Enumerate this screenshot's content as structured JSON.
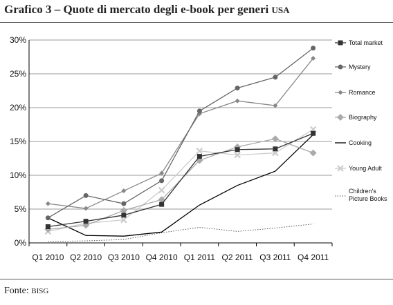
{
  "title": "Grafico 3 – Quote di mercato degli e-book per generi",
  "title_suffix": "USA",
  "source_label": "Fonte:",
  "source_value": "BISG",
  "chart_data": {
    "type": "line",
    "categories": [
      "Q1 2010",
      "Q2 2010",
      "Q3 2010",
      "Q4 2010",
      "Q1 2011",
      "Q2 2011",
      "Q3 2011",
      "Q4 2011"
    ],
    "ylim": [
      0,
      30
    ],
    "yticks": [
      0,
      5,
      10,
      15,
      20,
      25,
      30
    ],
    "yticklabels": [
      "0%",
      "5%",
      "10%",
      "15%",
      "20%",
      "25%",
      "30%"
    ],
    "grid": true,
    "legend_position": "right",
    "series": [
      {
        "name": "Total market",
        "color": "#333333",
        "marker": "square",
        "values": [
          2.4,
          3.2,
          4.1,
          5.7,
          12.8,
          13.8,
          13.9,
          16.2
        ]
      },
      {
        "name": "Mystery",
        "color": "#666666",
        "marker": "circle",
        "values": [
          3.7,
          7.0,
          5.8,
          9.2,
          19.5,
          22.9,
          24.5,
          28.8
        ]
      },
      {
        "name": "Romance",
        "color": "#888888",
        "marker": "smalldiamond",
        "values": [
          5.8,
          5.1,
          7.7,
          10.3,
          19.1,
          21.0,
          20.3,
          27.3
        ]
      },
      {
        "name": "Biography",
        "color": "#aaaaaa",
        "marker": "diamond",
        "values": [
          2.0,
          2.6,
          4.8,
          6.4,
          12.2,
          14.2,
          15.4,
          13.3
        ]
      },
      {
        "name": "Cooking",
        "color": "#000000",
        "marker": "none",
        "values": [
          3.7,
          1.1,
          1.0,
          1.6,
          5.6,
          8.5,
          10.6,
          16.0
        ]
      },
      {
        "name": "Young Adult",
        "color": "#cccccc",
        "marker": "x",
        "values": [
          1.7,
          2.9,
          3.4,
          7.8,
          13.6,
          13.0,
          13.3,
          16.8
        ]
      },
      {
        "name": "Children's Picture Books",
        "legend_lines": [
          "Children's",
          "Picture Books"
        ],
        "color": "#555555",
        "marker": "none",
        "dotted": true,
        "values": [
          0.2,
          0.3,
          0.5,
          1.5,
          2.3,
          1.7,
          2.2,
          2.8
        ]
      }
    ]
  }
}
